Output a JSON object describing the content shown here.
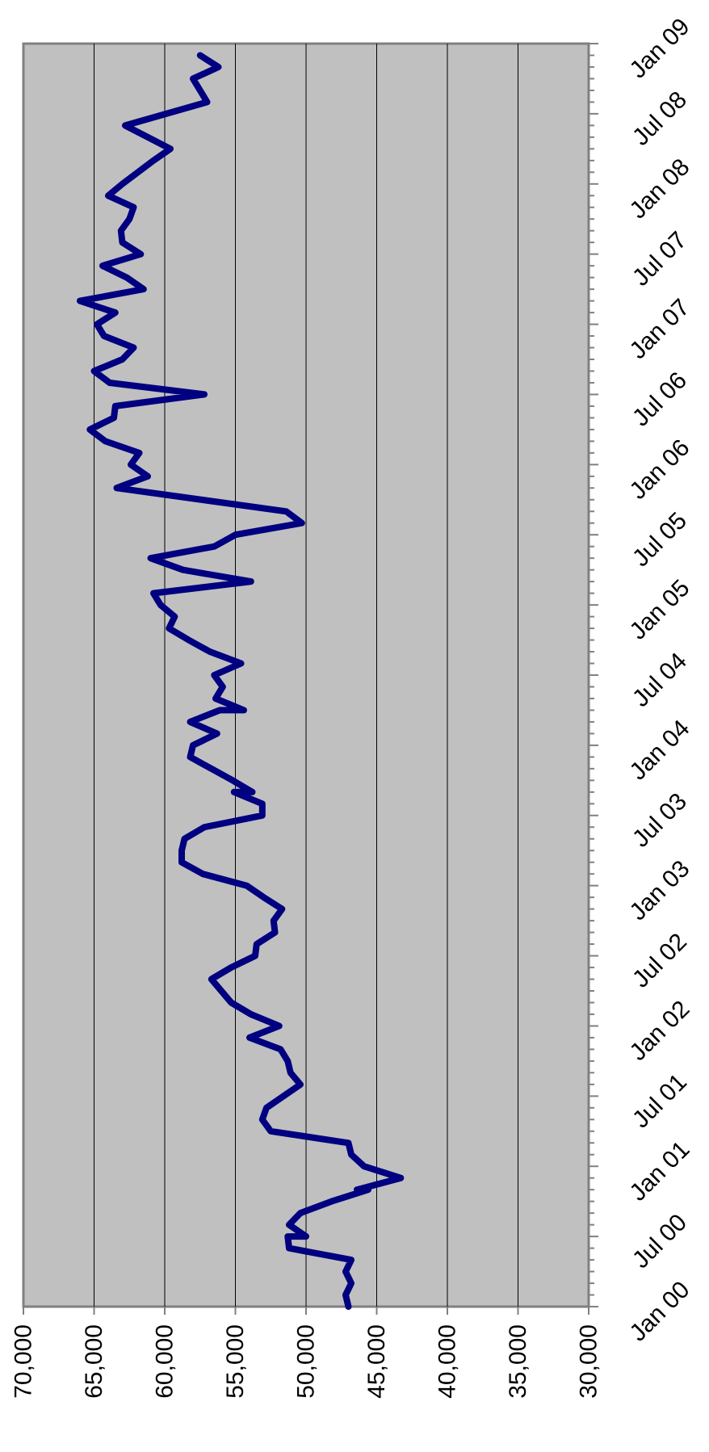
{
  "chart_data": {
    "type": "line",
    "title": "",
    "xlabel": "",
    "ylabel": "",
    "orientation": "rotated-90-clockwise",
    "x_tick_labels": [
      "Jan 00",
      "Jul 00",
      "Jan 01",
      "Jul 01",
      "Jan 02",
      "Jul 02",
      "Jan 03",
      "Jul 03",
      "Jan 04",
      "Jul 04",
      "Jan 05",
      "Jul 05",
      "Jan 06",
      "Jul 06",
      "Jan 07",
      "Jul 07",
      "Jan 08",
      "Jul 08",
      "Jan 09"
    ],
    "y_tick_labels": [
      "70,000",
      "65,000",
      "60,000",
      "55,000",
      "50,000",
      "45,000",
      "40,000",
      "35,000",
      "30,000"
    ],
    "ylim": [
      30000,
      70000
    ],
    "xlim": [
      "Jan 00",
      "Jan 09"
    ],
    "grid": true,
    "legend": "none",
    "colors": {
      "line": "#000080",
      "plot_background": "#c0c0c0",
      "grid": "#000000",
      "axis": "#808080"
    },
    "series": [
      {
        "values": [
          {
            "x": "Jan 00",
            "y": 47000
          },
          {
            "x": "Feb 00",
            "y": 47200
          },
          {
            "x": "Mar 00",
            "y": 46800
          },
          {
            "x": "Apr 00",
            "y": 47200
          },
          {
            "x": "May 00",
            "y": 46800
          },
          {
            "x": "Jun 00",
            "y": 51200
          },
          {
            "x": "Jul 00",
            "y": 51300
          },
          {
            "x": "Jul 00",
            "y": 50000
          },
          {
            "x": "Aug 00",
            "y": 51200
          },
          {
            "x": "Sep 00",
            "y": 50400
          },
          {
            "x": "Oct 00",
            "y": 48200
          },
          {
            "x": "Nov 00",
            "y": 45600
          },
          {
            "x": "Nov 00",
            "y": 46400
          },
          {
            "x": "Dec 00",
            "y": 43300
          },
          {
            "x": "Jan 01",
            "y": 45900
          },
          {
            "x": "Feb 01",
            "y": 46800
          },
          {
            "x": "Mar 01",
            "y": 47000
          },
          {
            "x": "Apr 01",
            "y": 52500
          },
          {
            "x": "May 01",
            "y": 53100
          },
          {
            "x": "Jun 01",
            "y": 52800
          },
          {
            "x": "Aug 01",
            "y": 50400
          },
          {
            "x": "Sep 01",
            "y": 51100
          },
          {
            "x": "Oct 01",
            "y": 51300
          },
          {
            "x": "Nov 01",
            "y": 51800
          },
          {
            "x": "Dec 01",
            "y": 54000
          },
          {
            "x": "Jan 02",
            "y": 51900
          },
          {
            "x": "Feb 02",
            "y": 53900
          },
          {
            "x": "Mar 02",
            "y": 55300
          },
          {
            "x": "May 02",
            "y": 56700
          },
          {
            "x": "Jun 02",
            "y": 55300
          },
          {
            "x": "Jul 02",
            "y": 53600
          },
          {
            "x": "Aug 02",
            "y": 53500
          },
          {
            "x": "Sep 02",
            "y": 52200
          },
          {
            "x": "Oct 02",
            "y": 52300
          },
          {
            "x": "Nov 02",
            "y": 51700
          },
          {
            "x": "Dec 02",
            "y": 53000
          },
          {
            "x": "Jan 03",
            "y": 54200
          },
          {
            "x": "Feb 03",
            "y": 57300
          },
          {
            "x": "Mar 03",
            "y": 58800
          },
          {
            "x": "Apr 03",
            "y": 58800
          },
          {
            "x": "May 03",
            "y": 58600
          },
          {
            "x": "Jun 03",
            "y": 57200
          },
          {
            "x": "Jul 03",
            "y": 53100
          },
          {
            "x": "Aug 03",
            "y": 53100
          },
          {
            "x": "Sep 03",
            "y": 55100
          },
          {
            "x": "Sep 03",
            "y": 53800
          },
          {
            "x": "Oct 03",
            "y": 55200
          },
          {
            "x": "Dec 03",
            "y": 58200
          },
          {
            "x": "Jan 04",
            "y": 58000
          },
          {
            "x": "Feb 04",
            "y": 56300
          },
          {
            "x": "Mar 04",
            "y": 58200
          },
          {
            "x": "Apr 04",
            "y": 56100
          },
          {
            "x": "Apr 04",
            "y": 54400
          },
          {
            "x": "May 04",
            "y": 56400
          },
          {
            "x": "Jun 04",
            "y": 55900
          },
          {
            "x": "Jul 04",
            "y": 56500
          },
          {
            "x": "Aug 04",
            "y": 54600
          },
          {
            "x": "Sep 04",
            "y": 56800
          },
          {
            "x": "Oct 04",
            "y": 58300
          },
          {
            "x": "Nov 04",
            "y": 59700
          },
          {
            "x": "Dec 04",
            "y": 59300
          },
          {
            "x": "Jan 05",
            "y": 60300
          },
          {
            "x": "Feb 05",
            "y": 60800
          },
          {
            "x": "Mar 05",
            "y": 53900
          },
          {
            "x": "Apr 05",
            "y": 58700
          },
          {
            "x": "May 05",
            "y": 61000
          },
          {
            "x": "Jun 05",
            "y": 56500
          },
          {
            "x": "Jul 05",
            "y": 55000
          },
          {
            "x": "Aug 05",
            "y": 50300
          },
          {
            "x": "Sep 05",
            "y": 51400
          },
          {
            "x": "Nov 05",
            "y": 63400
          },
          {
            "x": "Dec 05",
            "y": 61200
          },
          {
            "x": "Jan 06",
            "y": 62400
          },
          {
            "x": "Feb 06",
            "y": 61800
          },
          {
            "x": "Mar 06",
            "y": 64200
          },
          {
            "x": "Apr 06",
            "y": 65300
          },
          {
            "x": "May 06",
            "y": 63600
          },
          {
            "x": "Jun 06",
            "y": 63500
          },
          {
            "x": "Jul 06",
            "y": 57200
          },
          {
            "x": "Aug 06",
            "y": 63900
          },
          {
            "x": "Sep 06",
            "y": 65000
          },
          {
            "x": "Oct 06",
            "y": 63000
          },
          {
            "x": "Nov 06",
            "y": 62200
          },
          {
            "x": "Dec 06",
            "y": 64300
          },
          {
            "x": "Jan 07",
            "y": 64800
          },
          {
            "x": "Feb 07",
            "y": 63500
          },
          {
            "x": "Mar 07",
            "y": 66000
          },
          {
            "x": "Apr 07",
            "y": 61500
          },
          {
            "x": "May 07",
            "y": 62700
          },
          {
            "x": "Jun 07",
            "y": 64400
          },
          {
            "x": "Jul 07",
            "y": 61700
          },
          {
            "x": "Aug 07",
            "y": 63000
          },
          {
            "x": "Sep 07",
            "y": 63100
          },
          {
            "x": "Oct 07",
            "y": 62500
          },
          {
            "x": "Nov 07",
            "y": 62200
          },
          {
            "x": "Dec 07",
            "y": 64000
          },
          {
            "x": "Jan 08",
            "y": 63000
          },
          {
            "x": "Mar 08",
            "y": 60800
          },
          {
            "x": "Apr 08",
            "y": 59600
          },
          {
            "x": "Jun 08",
            "y": 62800
          },
          {
            "x": "Aug 08",
            "y": 57000
          },
          {
            "x": "Oct 08",
            "y": 58000
          },
          {
            "x": "Nov 08",
            "y": 56200
          },
          {
            "x": "Dec 08",
            "y": 57500
          }
        ]
      }
    ]
  }
}
